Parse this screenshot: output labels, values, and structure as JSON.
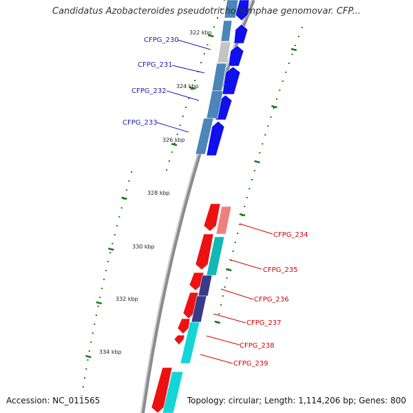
{
  "title": "Candidatus Azobacteroides pseudotrichonymphae genomovar. CFP...",
  "footer": {
    "accession": "Accession: NC_011565",
    "summary": "Topology: circular; Length: 1,114,206 bp; Genes: 800"
  },
  "ticks": [
    "322 kbp",
    "324 kbp",
    "326 kbp",
    "328 kbp",
    "330 kbp",
    "332 kbp",
    "334 kbp"
  ],
  "colors": {
    "backbone": "#8c8c8c",
    "tick": "#1a7a1a",
    "forward_label": "#1a1ab4",
    "reverse_label": "#d40000",
    "cds_blue": "#1010ee",
    "cds_red": "#ee1111",
    "steel_blue": "#4a86b8",
    "light_gray": "#c4c4c4",
    "cyan": "#14d6d6",
    "slate": "#3a3a8a",
    "pink": "#f08080",
    "teal": "#10b8b8"
  },
  "genes_forward": [
    "CFPG_230",
    "CFPG_231",
    "CFPG_232",
    "CFPG_233"
  ],
  "genes_reverse": [
    "CFPG_234",
    "CFPG_235",
    "CFPG_236",
    "CFPG_237",
    "CFPG_238",
    "CFPG_239"
  ]
}
